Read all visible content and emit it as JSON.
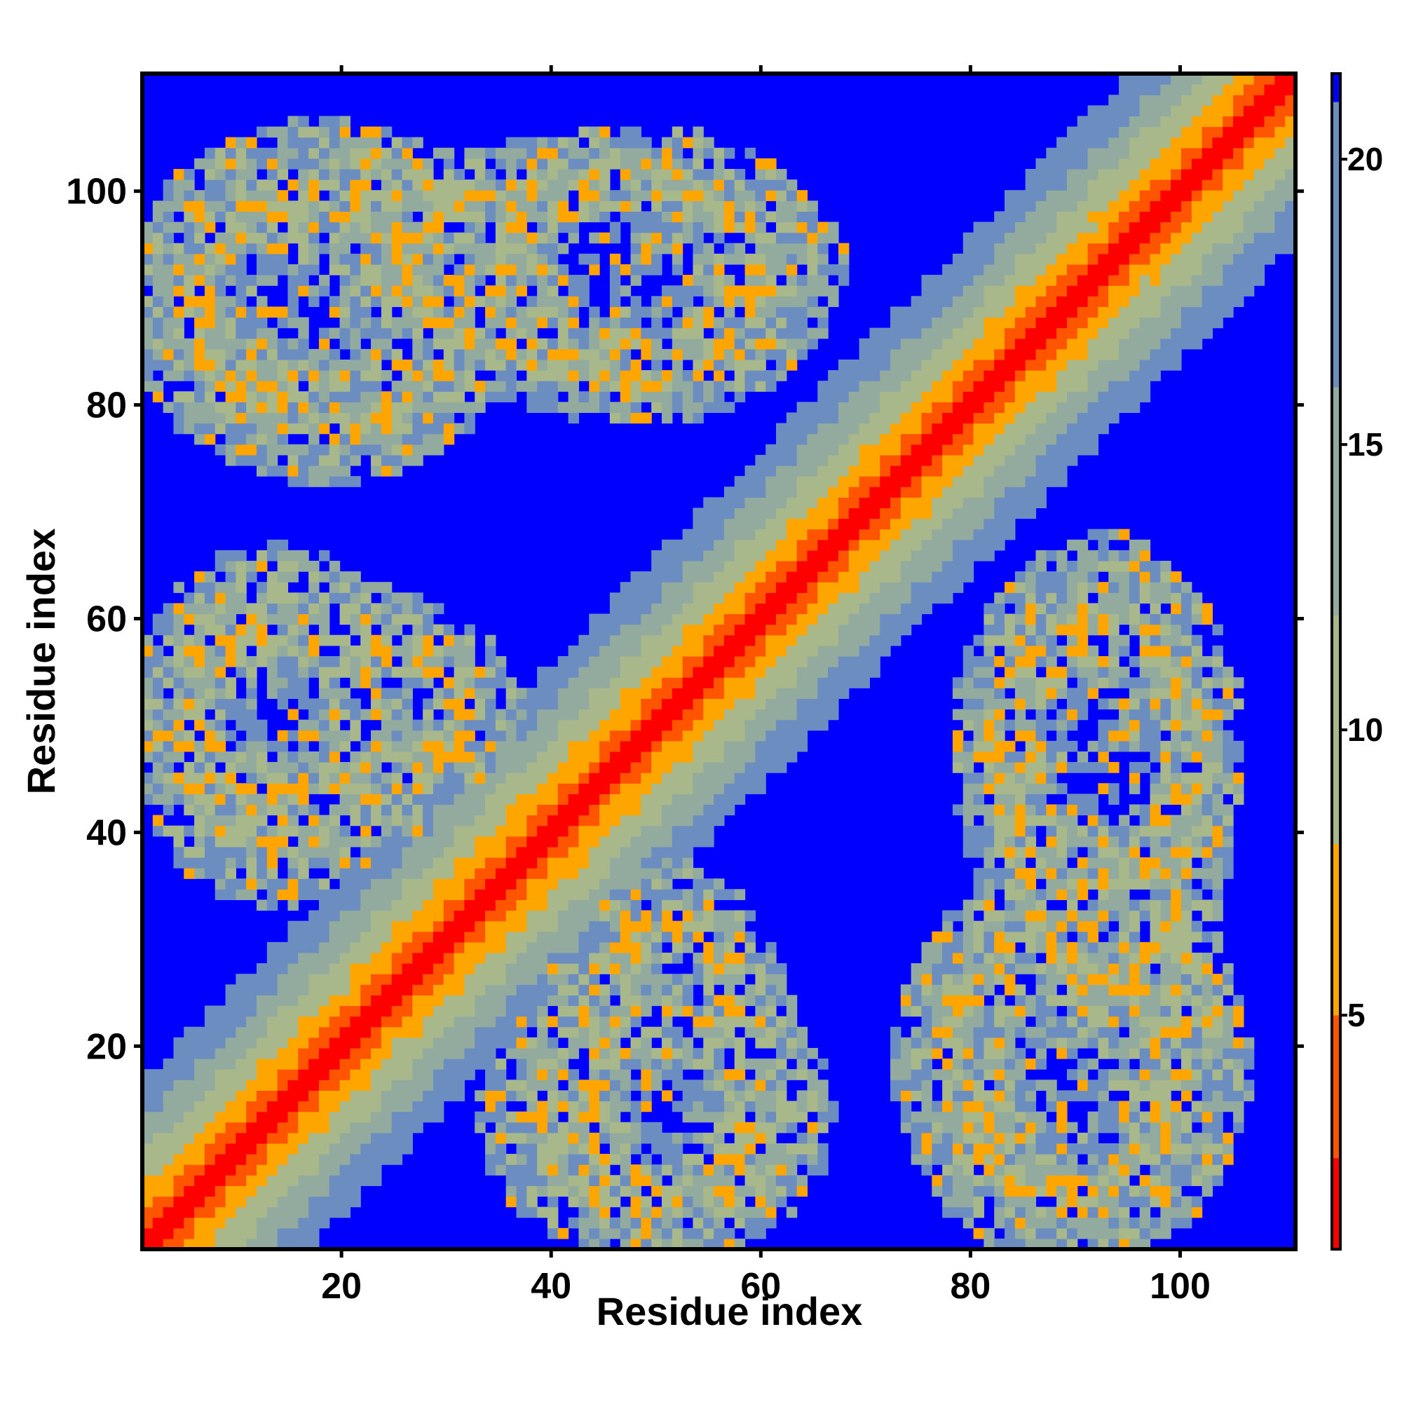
{
  "chart_data": {
    "type": "heatmap",
    "title": "",
    "xlabel": "Residue index",
    "ylabel": "Residue index",
    "n_residues": 111,
    "xlim": [
      1,
      111
    ],
    "ylim": [
      1,
      111
    ],
    "x_ticks": [
      20,
      40,
      60,
      80,
      100
    ],
    "y_ticks": [
      20,
      40,
      60,
      80,
      100
    ],
    "x_tick_labels": [
      "20",
      "40",
      "60",
      "80",
      "100"
    ],
    "y_tick_labels": [
      "20",
      "40",
      "60",
      "80",
      "100"
    ],
    "colorbar": {
      "range": [
        0.9,
        21.5
      ],
      "ticks": [
        5,
        10,
        15,
        20
      ],
      "tick_labels": [
        "5",
        "10",
        "15",
        "20"
      ],
      "levels": [
        {
          "min": 0,
          "max": 2.5,
          "color": "#ff0000"
        },
        {
          "min": 2.5,
          "max": 5,
          "color": "#ff5500"
        },
        {
          "min": 5,
          "max": 8,
          "color": "#ffa500"
        },
        {
          "min": 8,
          "max": 12,
          "color": "#a8b88a"
        },
        {
          "min": 12,
          "max": 16,
          "color": "#93ab9e"
        },
        {
          "min": 16,
          "max": 21,
          "color": "#6c8dc0"
        },
        {
          "min": 21,
          "max": 100,
          "color": "#0000ff"
        }
      ]
    },
    "contact_map": {
      "metric": "distance",
      "diagonal_band": true,
      "description_domains": [
        {
          "res_a": [
            1,
            35
          ],
          "res_b": [
            1,
            35
          ]
        },
        {
          "res_a": [
            35,
            70
          ],
          "res_b": [
            35,
            70
          ]
        },
        {
          "res_a": [
            70,
            111
          ],
          "res_b": [
            70,
            111
          ]
        }
      ],
      "off_diagonal_clusters": [
        {
          "res_a_range": [
            1,
            35
          ],
          "res_b_range": [
            40,
            62
          ]
        },
        {
          "res_a_range": [
            1,
            35
          ],
          "res_b_range": [
            80,
            100
          ]
        },
        {
          "res_a_range": [
            20,
            65
          ],
          "res_b_range": [
            82,
            104
          ]
        },
        {
          "res_a_range": [
            35,
            65
          ],
          "res_b_range": [
            1,
            25
          ]
        },
        {
          "res_a_range": [
            75,
            105
          ],
          "res_b_range": [
            1,
            35
          ]
        },
        {
          "res_a_range": [
            80,
            105
          ],
          "res_b_range": [
            30,
            65
          ]
        }
      ]
    }
  }
}
